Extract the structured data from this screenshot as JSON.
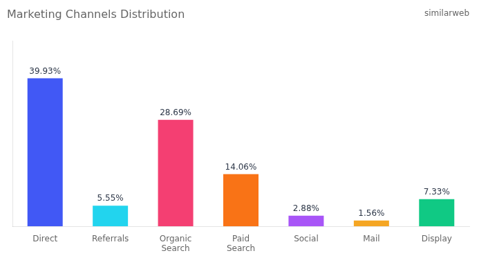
{
  "chart_data": {
    "type": "bar",
    "title": "Marketing Channels Distribution",
    "annotations": [
      "similarweb"
    ],
    "categories": [
      "Direct",
      "Referrals",
      "Organic\nSearch",
      "Paid\nSearch",
      "Social",
      "Mail",
      "Display"
    ],
    "values": [
      39.93,
      5.55,
      28.69,
      14.06,
      2.88,
      1.56,
      7.33
    ],
    "value_labels": [
      "39.93%",
      "5.55%",
      "28.69%",
      "14.06%",
      "2.88%",
      "1.56%",
      "7.33%"
    ],
    "colors": [
      "#4158f5",
      "#22d4ee",
      "#f43f72",
      "#f97316",
      "#a855f7",
      "#f5a623",
      "#10c984"
    ],
    "ylim": [
      0,
      50
    ],
    "grid": false,
    "legend": false,
    "data_labels": true,
    "tick_labels": "x"
  }
}
